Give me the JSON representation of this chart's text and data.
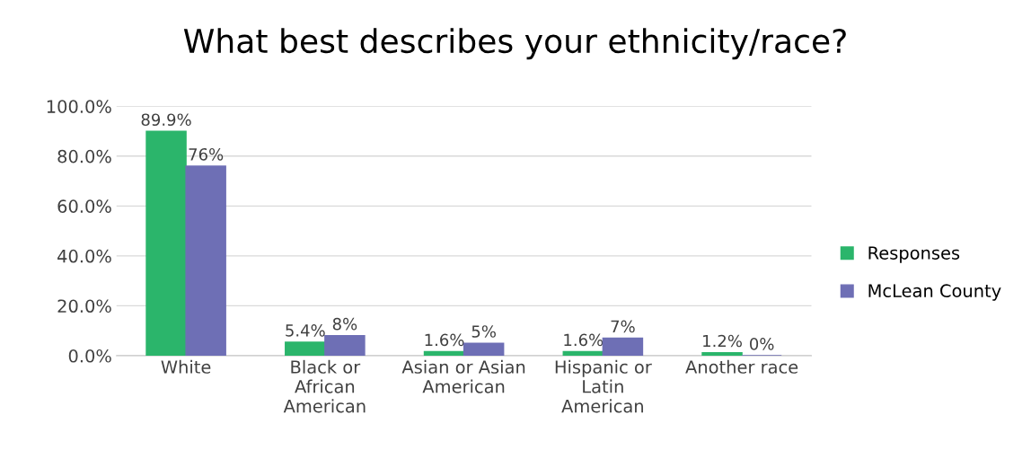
{
  "chart_data": {
    "type": "bar",
    "title": "What best describes your ethnicity/race?",
    "categories": [
      "White",
      "Black or\nAfrican\nAmerican",
      "Asian or Asian\nAmerican",
      "Hispanic or\nLatin\nAmerican",
      "Another race"
    ],
    "series": [
      {
        "name": "Responses",
        "color": "#2bb56b",
        "values": [
          89.9,
          5.4,
          1.6,
          1.6,
          1.2
        ],
        "value_labels": [
          "89.9%",
          "5.4%",
          "1.6%",
          "1.6%",
          "1.2%"
        ]
      },
      {
        "name": "McLean County",
        "color": "#6e6fb5",
        "values": [
          76,
          8,
          5,
          7,
          0
        ],
        "value_labels": [
          "76%",
          "8%",
          "5%",
          "7%",
          "0%"
        ]
      }
    ],
    "ylim": [
      0,
      100
    ],
    "yticks": [
      {
        "value": 0,
        "label": "0.0%"
      },
      {
        "value": 20,
        "label": "20.0%"
      },
      {
        "value": 40,
        "label": "40.0%"
      },
      {
        "value": 60,
        "label": "60.0%"
      },
      {
        "value": 80,
        "label": "80.0%"
      },
      {
        "value": 100,
        "label": "100.0%"
      }
    ],
    "grid": "y",
    "legend": "right"
  }
}
